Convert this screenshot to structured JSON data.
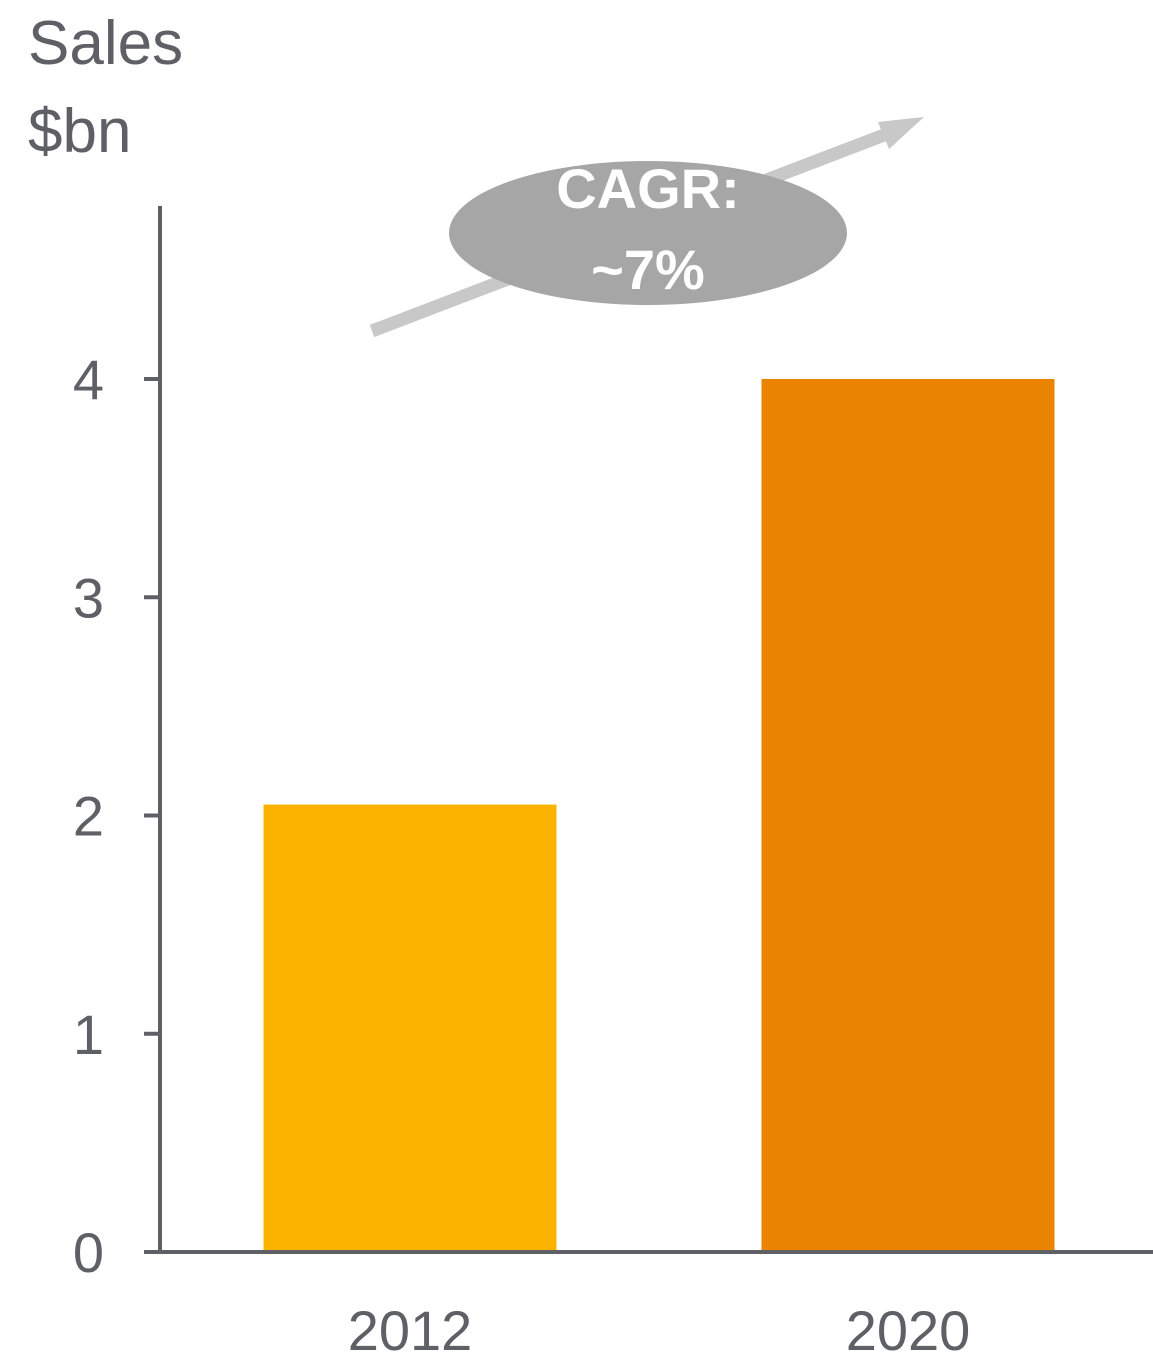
{
  "chart_data": {
    "type": "bar",
    "ylabel_lines": [
      "Sales",
      "$bn"
    ],
    "categories": [
      "2012",
      "2020"
    ],
    "values": [
      2.05,
      4.0
    ],
    "bar_colors": [
      "#FBB300",
      "#E98300"
    ],
    "ylim": [
      0,
      4.5
    ],
    "yticks": [
      "0",
      "1",
      "2",
      "3",
      "4"
    ],
    "grid": false,
    "annotation": {
      "lines": [
        "CAGR:",
        "~7%"
      ],
      "badge_color": "#A6A6A6",
      "arrow_color": "#C8C8C8"
    },
    "axis_color": "#5F6066"
  }
}
